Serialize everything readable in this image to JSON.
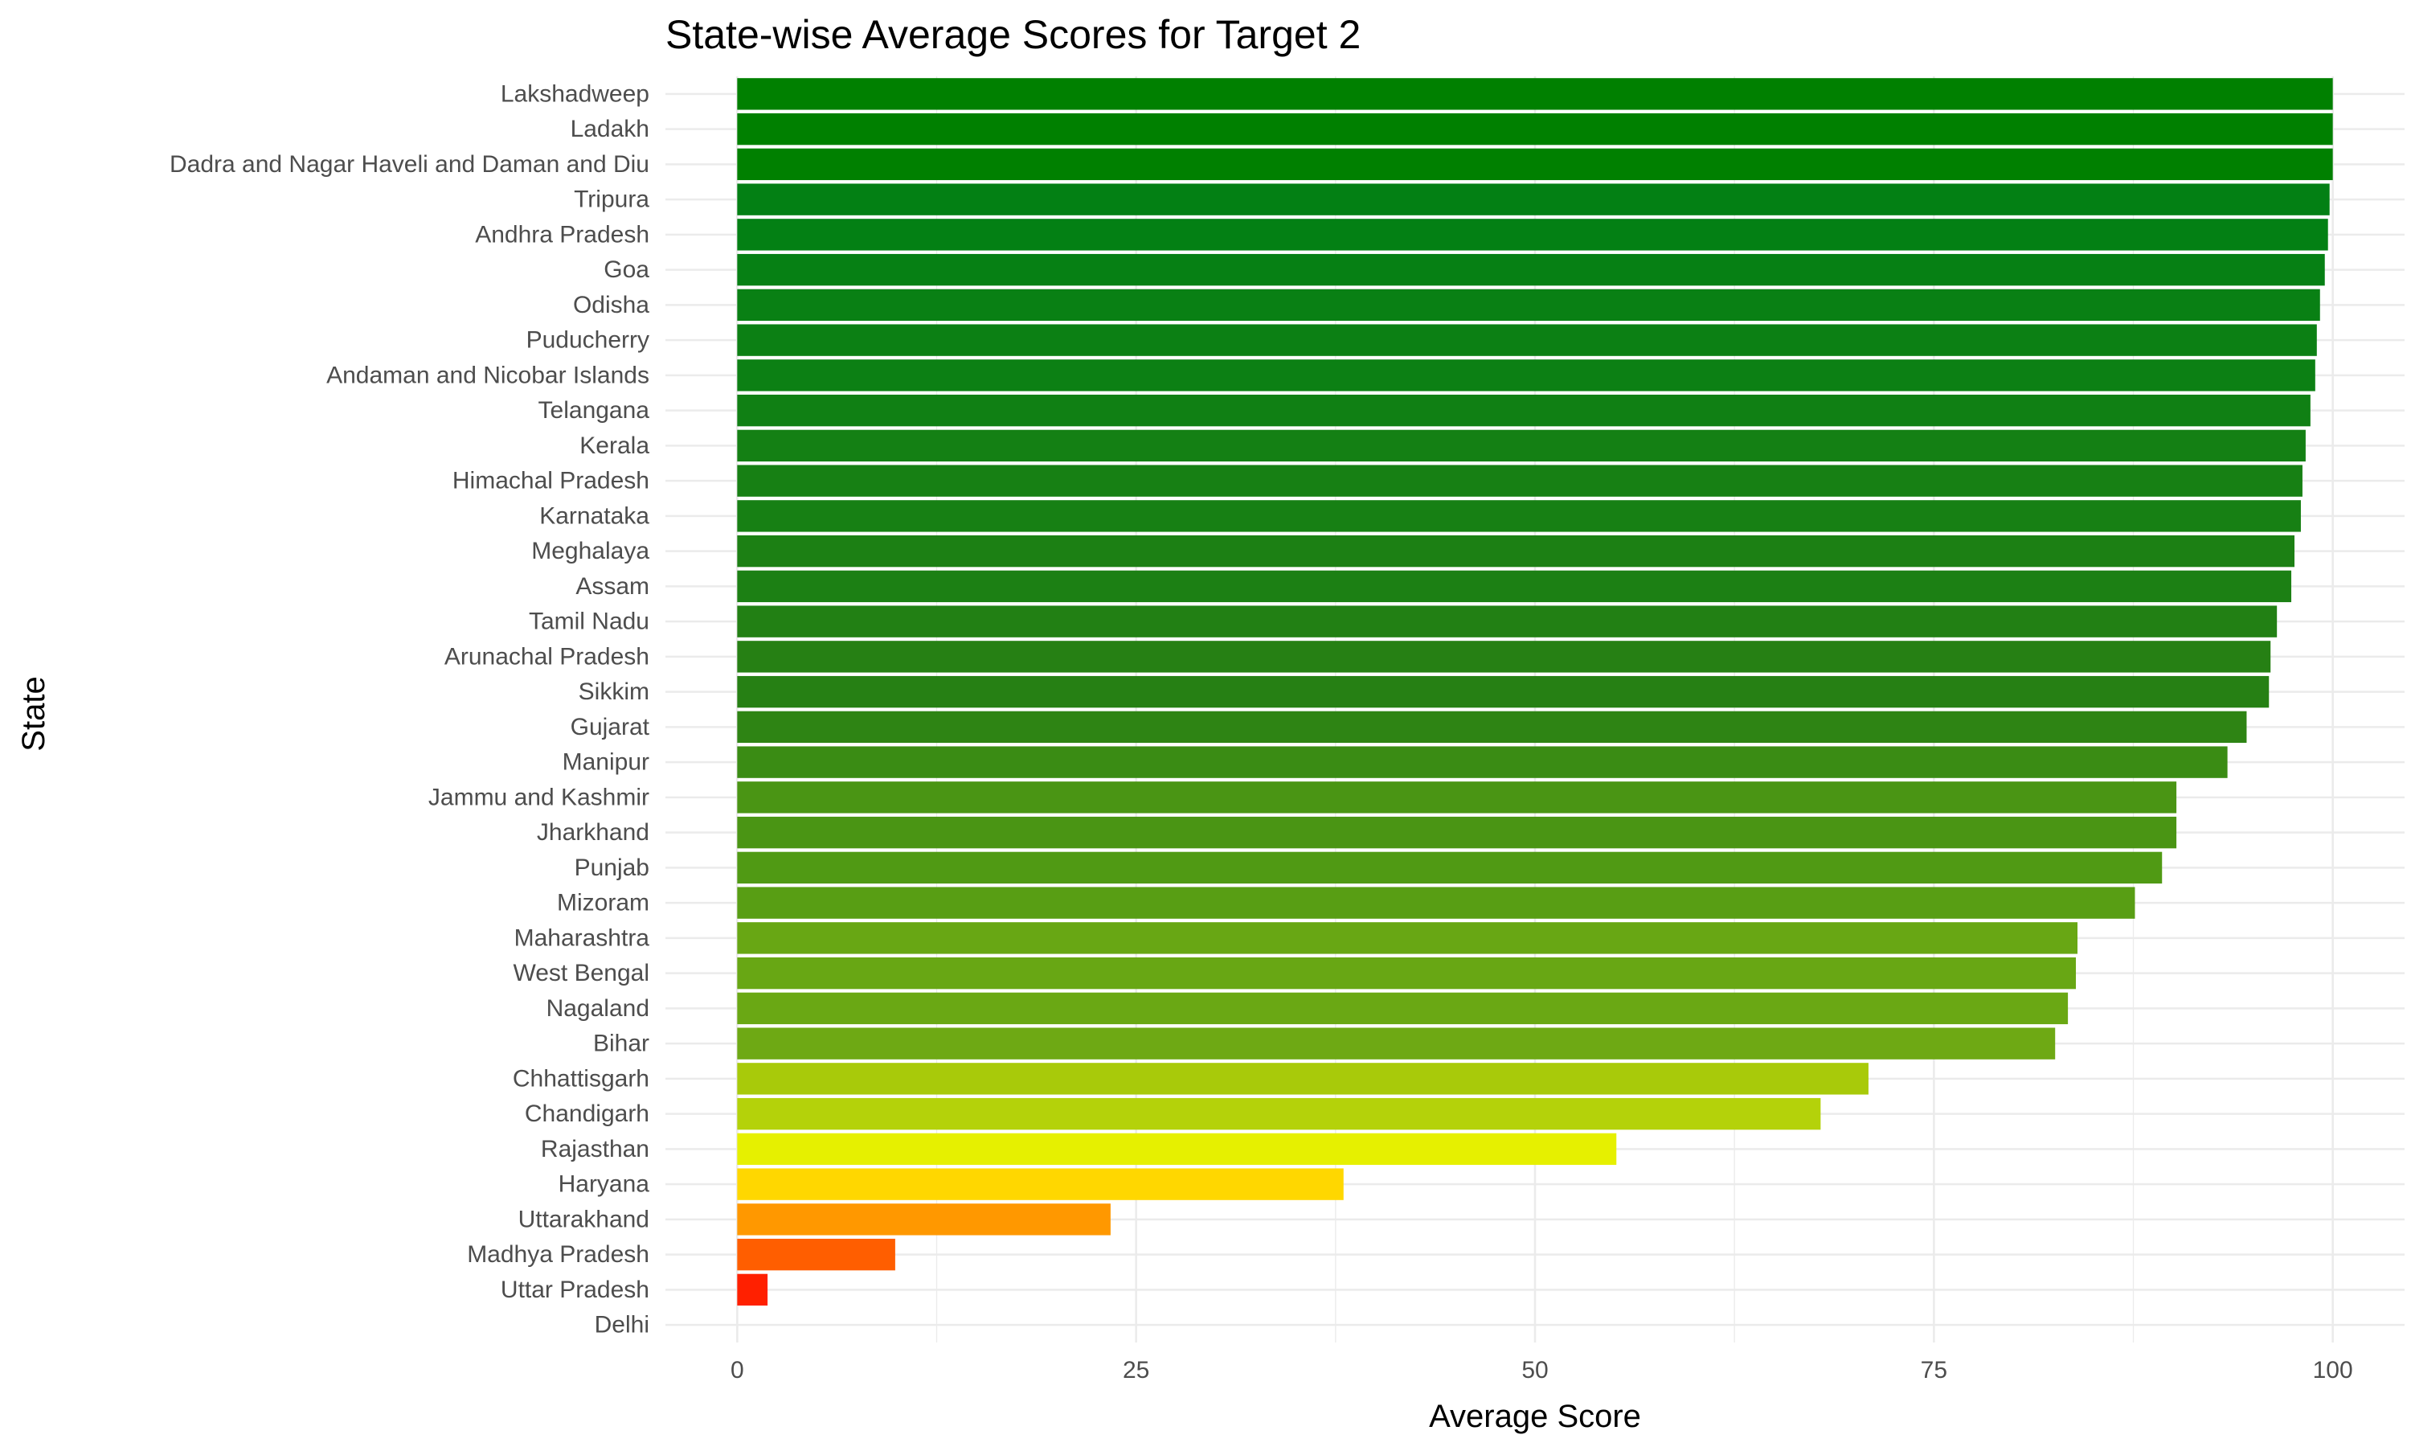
{
  "chart_data": {
    "type": "bar",
    "orientation": "horizontal",
    "title": "State-wise Average Scores for Target 2",
    "xlabel": "Average Score",
    "ylabel": "State",
    "xlim": [
      -4.5,
      104.5
    ],
    "x_ticks": [
      0,
      25,
      50,
      75,
      100
    ],
    "x_tick_labels": [
      "0",
      "25",
      "50",
      "75",
      "100"
    ],
    "grid": true,
    "legend": "none",
    "color_scale": [
      "#ff0000",
      "#ffa500",
      "#ffff00",
      "#008000"
    ],
    "categories": [
      "Lakshadweep",
      "Ladakh",
      "Dadra and Nagar Haveli and Daman and Diu",
      "Tripura",
      "Andhra Pradesh",
      "Goa",
      "Odisha",
      "Puducherry",
      "Andaman and Nicobar Islands",
      "Telangana",
      "Kerala",
      "Himachal Pradesh",
      "Karnataka",
      "Meghalaya",
      "Assam",
      "Tamil Nadu",
      "Arunachal Pradesh",
      "Sikkim",
      "Gujarat",
      "Manipur",
      "Jammu and Kashmir",
      "Jharkhand",
      "Punjab",
      "Mizoram",
      "Maharashtra",
      "West Bengal",
      "Nagaland",
      "Bihar",
      "Chhattisgarh",
      "Chandigarh",
      "Rajasthan",
      "Haryana",
      "Uttarakhand",
      "Madhya Pradesh",
      "Uttar Pradesh",
      "Delhi"
    ],
    "values": [
      100.0,
      100.0,
      100.0,
      99.8,
      99.7,
      99.5,
      99.2,
      99.0,
      98.9,
      98.6,
      98.3,
      98.1,
      98.0,
      97.6,
      97.4,
      96.5,
      96.1,
      96.0,
      94.6,
      93.4,
      90.2,
      90.2,
      89.3,
      87.6,
      84.0,
      83.9,
      83.4,
      82.6,
      70.9,
      67.9,
      55.1,
      38.0,
      23.4,
      9.9,
      1.9,
      0.0
    ],
    "colors": [
      "#008000",
      "#008000",
      "#008000",
      "#038014",
      "#038014",
      "#068014",
      "#098014",
      "#0c8014",
      "#0c8014",
      "#108014",
      "#148014",
      "#178014",
      "#178014",
      "#1c8014",
      "#1c8014",
      "#228014",
      "#268014",
      "#268014",
      "#2e8414",
      "#3a8c14",
      "#4a9514",
      "#4a9514",
      "#509a14",
      "#589e14",
      "#68a714",
      "#68a714",
      "#6aa814",
      "#6ea914",
      "#a8ca0a",
      "#b4d20a",
      "#e6f000",
      "#ffd700",
      "#ff9800",
      "#ff5e00",
      "#ff2000",
      "#ff0000"
    ]
  }
}
